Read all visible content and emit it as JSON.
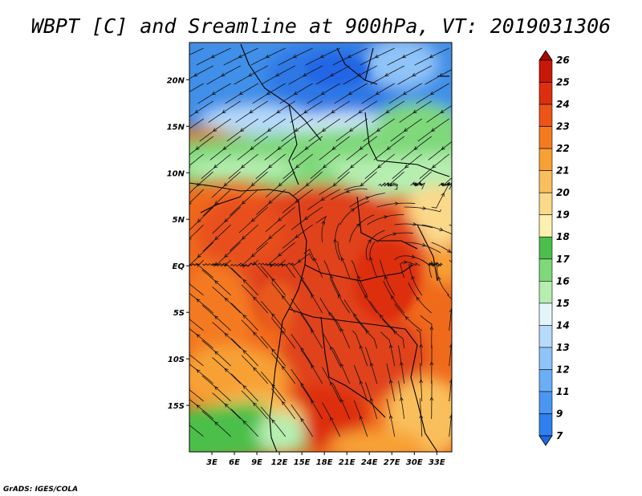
{
  "chart_data": {
    "type": "heatmap",
    "title": "WBPT [C] and Sreamline at 900hPa, VT: 2019031306",
    "variable": "WBPT [C]",
    "overlay": "Streamline",
    "level": "900hPa",
    "valid_time": "2019031306",
    "xlim": [
      0,
      35
    ],
    "ylim": [
      -20,
      24
    ],
    "x_ticks": [
      {
        "value": 3,
        "label": "3E"
      },
      {
        "value": 6,
        "label": "6E"
      },
      {
        "value": 9,
        "label": "9E"
      },
      {
        "value": 12,
        "label": "12E"
      },
      {
        "value": 15,
        "label": "15E"
      },
      {
        "value": 18,
        "label": "18E"
      },
      {
        "value": 21,
        "label": "21E"
      },
      {
        "value": 24,
        "label": "24E"
      },
      {
        "value": 27,
        "label": "27E"
      },
      {
        "value": 30,
        "label": "30E"
      },
      {
        "value": 33,
        "label": "33E"
      }
    ],
    "y_ticks": [
      {
        "value": 20,
        "label": "20N"
      },
      {
        "value": 15,
        "label": "15N"
      },
      {
        "value": 10,
        "label": "10N"
      },
      {
        "value": 5,
        "label": "5N"
      },
      {
        "value": 0,
        "label": "EQ"
      },
      {
        "value": -5,
        "label": "5S"
      },
      {
        "value": -10,
        "label": "10S"
      },
      {
        "value": -15,
        "label": "15S"
      }
    ],
    "colorbar": {
      "labels": [
        "7",
        "9",
        "11",
        "12",
        "13",
        "14",
        "15",
        "16",
        "17",
        "18",
        "19",
        "20",
        "21",
        "22",
        "23",
        "24",
        "25",
        "26"
      ],
      "colors": [
        "#2166e6",
        "#2e7ff0",
        "#4a97f3",
        "#6aaef6",
        "#8fc4f8",
        "#b6dafa",
        "#e4f5fa",
        "#b5eeb0",
        "#7fd87a",
        "#4cbf4a",
        "#fdf0b0",
        "#fbd98a",
        "#f9bf5c",
        "#f7a134",
        "#f47a20",
        "#ec5418",
        "#dd2f10",
        "#c81808",
        "#a60a04"
      ]
    },
    "credit": "GrADS: IGES/COLA"
  }
}
